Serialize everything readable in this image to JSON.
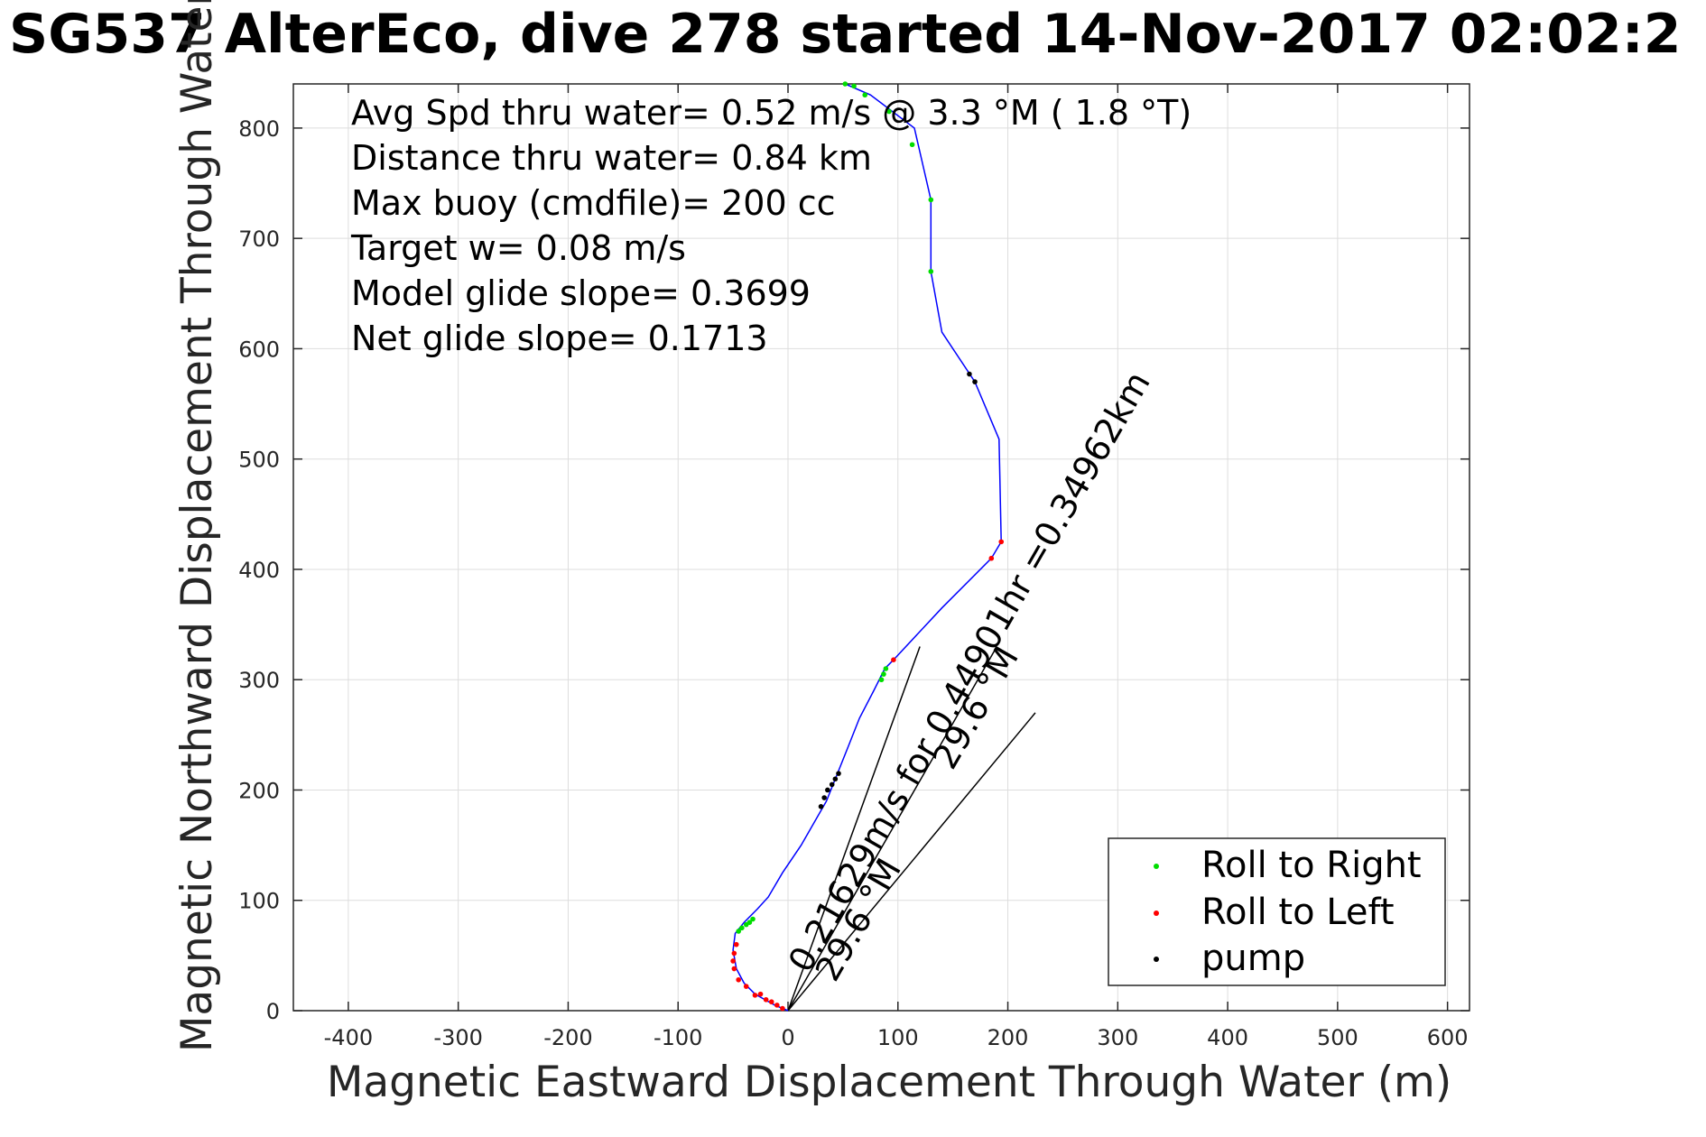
{
  "chart_data": {
    "type": "scatter",
    "title": "SG537 AlterEco, dive 278 started 14-Nov-2017 02:02:2",
    "xlabel": "Magnetic Eastward Displacement Through Water (m)",
    "ylabel": "Magnetic Northward Displacement Through Water (",
    "xlim": [
      -450,
      620
    ],
    "ylim": [
      0,
      840
    ],
    "xticks": [
      -400,
      -300,
      -200,
      -100,
      0,
      100,
      200,
      300,
      400,
      500,
      600
    ],
    "yticks": [
      0,
      100,
      200,
      300,
      400,
      500,
      600,
      700,
      800
    ],
    "grid": true,
    "colors": {
      "track": "#0000ff",
      "right": "#00dd00",
      "left": "#ff0000",
      "pump": "#000000",
      "grid": "#dddddd",
      "axis": "#262626"
    },
    "annotations": [
      "Avg Spd thru water=  0.52 m/s @   3.3 °M (  1.8 °T)",
      "Distance thru water=  0.84 km",
      "Max buoy (cmdfile)= 200 cc",
      "Target w= 0.08 m/s",
      "Model glide slope= 0.3699",
      "Net glide slope= 0.1713"
    ],
    "vector_labels": {
      "current": "0.21629m/s for 0.44901hr =0.34962km",
      "heading_a": "29.6 °M",
      "heading_b": "29.6 °M"
    },
    "vectors": [
      {
        "name": "line-a",
        "x": [
          0,
          120
        ],
        "y": [
          0,
          330
        ]
      },
      {
        "name": "line-b",
        "x": [
          0,
          225
        ],
        "y": [
          0,
          270
        ]
      },
      {
        "name": "line-current",
        "x": [
          0,
          190
        ],
        "y": [
          0,
          330
        ]
      }
    ],
    "track": {
      "x": [
        0,
        -12,
        -30,
        -40,
        -47,
        -50,
        -48,
        -40,
        -28,
        -18,
        -5,
        12,
        35,
        55,
        65,
        78,
        88,
        96,
        140,
        185,
        194,
        192,
        170,
        140,
        130,
        130,
        115,
        75,
        52
      ],
      "y": [
        0,
        5,
        15,
        25,
        38,
        55,
        70,
        80,
        92,
        103,
        125,
        150,
        190,
        240,
        265,
        290,
        310,
        318,
        365,
        410,
        425,
        518,
        570,
        615,
        670,
        735,
        800,
        830,
        840
      ]
    },
    "series": [
      {
        "name": "Roll to Right",
        "x": [
          -45,
          -42,
          -38,
          -35,
          -32,
          85,
          87,
          89,
          130,
          130,
          113,
          92,
          70,
          60,
          52
        ],
        "y": [
          72,
          75,
          78,
          80,
          83,
          300,
          305,
          310,
          670,
          735,
          785,
          815,
          830,
          838,
          840
        ]
      },
      {
        "name": "Roll to Left",
        "x": [
          -5,
          -15,
          -25,
          -38,
          -45,
          -49,
          -50,
          -49,
          -47,
          -30,
          -20,
          -10,
          96,
          185,
          194
        ],
        "y": [
          2,
          8,
          15,
          22,
          28,
          38,
          45,
          52,
          60,
          14,
          10,
          5,
          318,
          410,
          425
        ]
      },
      {
        "name": "pump",
        "x": [
          30,
          33,
          36,
          40,
          43,
          46,
          165,
          170
        ],
        "y": [
          185,
          193,
          200,
          205,
          210,
          215,
          577,
          570
        ]
      }
    ],
    "legend": {
      "position": "bottom-right",
      "entries": [
        "Roll to Right",
        "Roll to Left",
        "pump"
      ]
    }
  }
}
